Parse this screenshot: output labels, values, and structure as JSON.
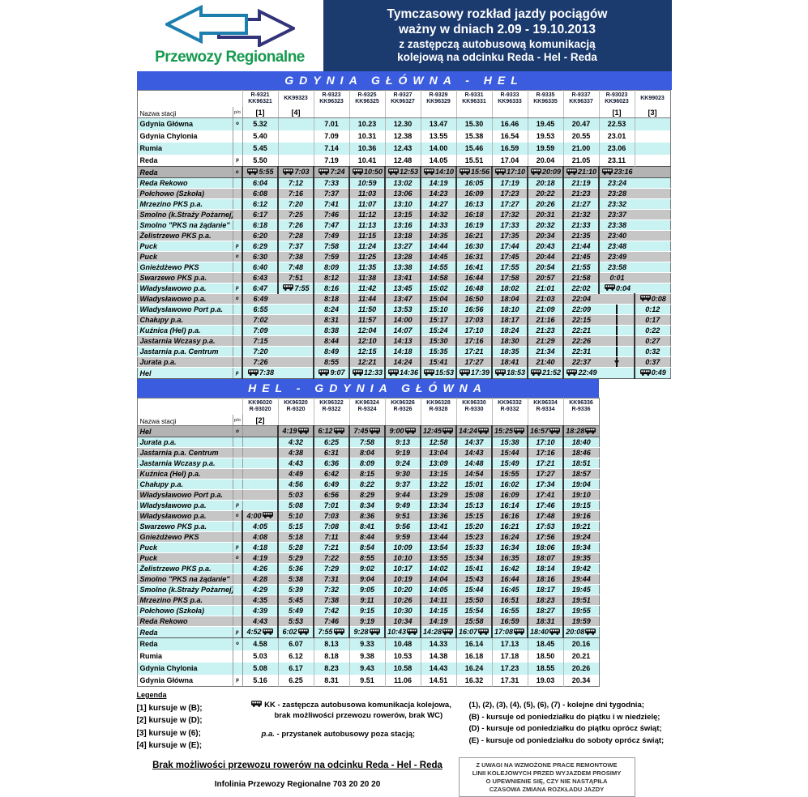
{
  "header": {
    "logo_text": "Przewozy Regionalne",
    "title_lines": [
      "Tymczasowy rozkład jazdy pociągów",
      "ważny w dniach 2.09 - 19.10.2013",
      "z zastępczą autobusową komunikacją",
      "kolejową na odcinku Reda - Hel - Reda"
    ]
  },
  "colors": {
    "banner_navy": "#1b3a6e",
    "route_blue": "#3b5cdf",
    "row_cyan": "#c9f2f2",
    "row_gray": "#c6c6c6",
    "transfer_gray": "#b3b3b3",
    "logo_green": "#159a4e",
    "arrow_teal": "#1d7fae",
    "arrow_navy": "#33337a"
  },
  "table1": {
    "title": "GDYNIA GŁÓWNA - HEL",
    "station_header": "Nazwa stacji",
    "po_header": "p/o",
    "columns": [
      {
        "l1": "R-9321",
        "l2": "KK96321",
        "note": "[1]"
      },
      {
        "l1": "KK99323",
        "l2": "",
        "note": "[4]"
      },
      {
        "l1": "R-9323",
        "l2": "KK96323",
        "note": ""
      },
      {
        "l1": "R-9325",
        "l2": "KK96325",
        "note": ""
      },
      {
        "l1": "R-9327",
        "l2": "KK96327",
        "note": ""
      },
      {
        "l1": "R-9329",
        "l2": "KK96329",
        "note": ""
      },
      {
        "l1": "R-9331",
        "l2": "KK96331",
        "note": ""
      },
      {
        "l1": "R-9333",
        "l2": "KK96333",
        "note": ""
      },
      {
        "l1": "R-9335",
        "l2": "KK96335",
        "note": ""
      },
      {
        "l1": "R-9337",
        "l2": "KK96337",
        "note": ""
      },
      {
        "l1": "R-93023",
        "l2": "KK96023",
        "note": "[1]"
      },
      {
        "l1": "KK99023",
        "l2": "",
        "note": "[3]"
      }
    ],
    "rows": [
      {
        "n": "Gdynia Główna",
        "po": "o",
        "s": "trc",
        "cells": [
          "5.32",
          "",
          "7.01",
          "10.23",
          "12.30",
          "13.47",
          "15.30",
          "16.46",
          "19.45",
          "20.47",
          "22.53",
          ""
        ]
      },
      {
        "n": "Gdynia Chylonia",
        "po": "",
        "s": "trw",
        "cells": [
          "5.40",
          "",
          "7.09",
          "10.31",
          "12.38",
          "13.55",
          "15.38",
          "16.54",
          "19.53",
          "20.55",
          "23.01",
          ""
        ]
      },
      {
        "n": "Rumia",
        "po": "",
        "s": "trc",
        "cells": [
          "5.45",
          "",
          "7.14",
          "10.36",
          "12.43",
          "14.00",
          "15.46",
          "16.59",
          "19.59",
          "21.00",
          "23.06",
          ""
        ]
      },
      {
        "n": "Reda",
        "po": "p",
        "s": "trw",
        "cells": [
          "5.50",
          "",
          "7.19",
          "10.41",
          "12.48",
          "14.05",
          "15.51",
          "17.04",
          "20.04",
          "21.05",
          "23.11",
          ""
        ]
      },
      {
        "n": "Reda",
        "po": "o",
        "s": "xg",
        "cells": [
          "~5:55",
          "~7:03",
          "~7:24",
          "~10:50",
          "~12:53",
          "~14:10",
          "~15:56",
          "~17:10",
          "~20:09",
          "~21:10",
          "~23:16",
          ""
        ]
      },
      {
        "n": "Reda Rekowo",
        "po": "",
        "s": "bc",
        "cells": [
          "6:04",
          "7:12",
          "7:33",
          "10:59",
          "13:02",
          "14:19",
          "16:05",
          "17:19",
          "20:18",
          "21:19",
          "23:24",
          ""
        ]
      },
      {
        "n": "Połchowo (Szkoła)",
        "po": "",
        "s": "bg",
        "cells": [
          "6:08",
          "7:16",
          "7:37",
          "11:03",
          "13:06",
          "14:23",
          "16:09",
          "17:23",
          "20:22",
          "21:23",
          "23:28",
          ""
        ]
      },
      {
        "n": "Mrzezino PKS p.a.",
        "po": "",
        "s": "bc",
        "cells": [
          "6:12",
          "7:20",
          "7:41",
          "11:07",
          "13:10",
          "14:27",
          "16:13",
          "17:27",
          "20:26",
          "21:27",
          "23:32",
          ""
        ]
      },
      {
        "n": "Smolno (k.Straży Pożarnej)",
        "po": "",
        "s": "bg",
        "cells": [
          "6:17",
          "7:25",
          "7:46",
          "11:12",
          "13:15",
          "14:32",
          "16:18",
          "17:32",
          "20:31",
          "21:32",
          "23:37",
          ""
        ]
      },
      {
        "n": "Smolno \"PKS na żądanie\"",
        "po": "",
        "s": "bc",
        "cells": [
          "6:18",
          "7:26",
          "7:47",
          "11:13",
          "13:16",
          "14:33",
          "16:19",
          "17:33",
          "20:32",
          "21:33",
          "23:38",
          ""
        ]
      },
      {
        "n": "Żelistrzewo PKS p.a.",
        "po": "",
        "s": "bg",
        "cells": [
          "6:20",
          "7:28",
          "7:49",
          "11:15",
          "13:18",
          "14:35",
          "16:21",
          "17:35",
          "20:34",
          "21:35",
          "23:40",
          ""
        ]
      },
      {
        "n": "Puck",
        "po": "p",
        "s": "bc",
        "cells": [
          "6:29",
          "7:37",
          "7:58",
          "11:24",
          "13:27",
          "14:44",
          "16:30",
          "17:44",
          "20:43",
          "21:44",
          "23:48",
          ""
        ]
      },
      {
        "n": "Puck",
        "po": "o",
        "s": "bg",
        "cells": [
          "6:30",
          "7:38",
          "7:59",
          "11:25",
          "13:28",
          "14:45",
          "16:31",
          "17:45",
          "20:44",
          "21:45",
          "23:49",
          ""
        ]
      },
      {
        "n": "Gnieżdżewo PKS",
        "po": "",
        "s": "bc",
        "cells": [
          "6:40",
          "7:48",
          "8:09",
          "11:35",
          "13:38",
          "14:55",
          "16:41",
          "17:55",
          "20:54",
          "21:55",
          "23:58",
          ""
        ]
      },
      {
        "n": "Swarzewo PKS p.a.",
        "po": "",
        "s": "bg",
        "cells": [
          "6:43",
          "7:51",
          "8:12",
          "11:38",
          "13:41",
          "14:58",
          "16:44",
          "17:58",
          "20:57",
          "21:58",
          "0:01",
          ""
        ]
      },
      {
        "n": "Władysławowo p.a.",
        "po": "p",
        "s": "bc",
        "cells": [
          "6:47",
          "~7:55",
          "8:16",
          "11:42",
          "13:45",
          "15:02",
          "16:48",
          "18:02",
          "21:01",
          "22:02",
          "~0:04",
          ""
        ]
      },
      {
        "n": "Władysławowo p.a.",
        "po": "o",
        "s": "bg",
        "cells": [
          "6:49",
          "",
          "8:18",
          "11:44",
          "13:47",
          "15:04",
          "16:50",
          "18:04",
          "21:03",
          "22:04",
          "",
          "~0:08"
        ]
      },
      {
        "n": "Władysławowo Port p.a.",
        "po": "",
        "s": "bc",
        "cells": [
          "6:55",
          "",
          "8:24",
          "11:50",
          "13:53",
          "15:10",
          "16:56",
          "18:10",
          "21:09",
          "22:09",
          "|",
          "0:12"
        ]
      },
      {
        "n": "Chałupy p.a.",
        "po": "",
        "s": "bg",
        "cells": [
          "7:02",
          "",
          "8:31",
          "11:57",
          "14:00",
          "15:17",
          "17:03",
          "18:17",
          "21:16",
          "22:15",
          "|",
          "0:17"
        ]
      },
      {
        "n": "Kuźnica (Hel) p.a.",
        "po": "",
        "s": "bc",
        "cells": [
          "7:09",
          "",
          "8:38",
          "12:04",
          "14:07",
          "15:24",
          "17:10",
          "18:24",
          "21:23",
          "22:21",
          "|",
          "0:22"
        ]
      },
      {
        "n": "Jastarnia Wczasy p.a.",
        "po": "",
        "s": "bg",
        "cells": [
          "7:15",
          "",
          "8:44",
          "12:10",
          "14:13",
          "15:30",
          "17:16",
          "18:30",
          "21:29",
          "22:26",
          "|",
          "0:27"
        ]
      },
      {
        "n": "Jastarnia p.a. Centrum",
        "po": "",
        "s": "bc",
        "cells": [
          "7:20",
          "",
          "8:49",
          "12:15",
          "14:18",
          "15:35",
          "17:21",
          "18:35",
          "21:34",
          "22:31",
          "|",
          "0:32"
        ]
      },
      {
        "n": "Jurata p.a.",
        "po": "",
        "s": "bg",
        "cells": [
          "7:26",
          "",
          "8:55",
          "12:21",
          "14:24",
          "15:41",
          "17:27",
          "18:41",
          "21:40",
          "22:37",
          "|v",
          "0:37"
        ]
      },
      {
        "n": "Hel",
        "po": "p",
        "s": "xc",
        "cells": [
          "~7:38",
          "",
          "~9:07",
          "~12:33",
          "~14:36",
          "~15:53",
          "~17:39",
          "~18:53",
          "~21:52",
          "~22:49",
          "",
          "~0:49"
        ]
      }
    ]
  },
  "table2": {
    "title": "HEL - GDYNIA GŁÓWNA",
    "station_header": "Nazwa stacji",
    "po_header": "p/o",
    "columns": [
      {
        "l1": "KK96020",
        "l2": "R-93020",
        "note": "[2]"
      },
      {
        "l1": "KK96320",
        "l2": "R-9320",
        "note": ""
      },
      {
        "l1": "KK96322",
        "l2": "R-9322",
        "note": ""
      },
      {
        "l1": "KK96324",
        "l2": "R-9324",
        "note": ""
      },
      {
        "l1": "KK96326",
        "l2": "R-9326",
        "note": ""
      },
      {
        "l1": "KK96328",
        "l2": "R-9328",
        "note": ""
      },
      {
        "l1": "KK96330",
        "l2": "R-9330",
        "note": ""
      },
      {
        "l1": "KK96332",
        "l2": "R-9332",
        "note": ""
      },
      {
        "l1": "KK96334",
        "l2": "R-9334",
        "note": ""
      },
      {
        "l1": "KK96336",
        "l2": "R-9336",
        "note": ""
      }
    ],
    "rows": [
      {
        "n": "Hel",
        "po": "o",
        "s": "xg",
        "cells": [
          "",
          "4:19~",
          "6:12~",
          "7:45~",
          "9:00~",
          "12:45~",
          "14:24~",
          "15:25~",
          "16:57~",
          "18:28~"
        ]
      },
      {
        "n": "Jurata p.a.",
        "po": "",
        "s": "bc",
        "cells": [
          "",
          "4:32",
          "6:25",
          "7:58",
          "9:13",
          "12:58",
          "14:37",
          "15:38",
          "17:10",
          "18:40"
        ]
      },
      {
        "n": "Jastarnia p.a. Centrum",
        "po": "",
        "s": "bg",
        "cells": [
          "",
          "4:38",
          "6:31",
          "8:04",
          "9:19",
          "13:04",
          "14:43",
          "15:44",
          "17:16",
          "18:46"
        ]
      },
      {
        "n": "Jastarnia Wczasy p.a.",
        "po": "",
        "s": "bc",
        "cells": [
          "",
          "4:43",
          "6:36",
          "8:09",
          "9:24",
          "13:09",
          "14:48",
          "15:49",
          "17:21",
          "18:51"
        ]
      },
      {
        "n": "Kuźnica (Hel) p.a.",
        "po": "",
        "s": "bg",
        "cells": [
          "",
          "4:49",
          "6:42",
          "8:15",
          "9:30",
          "13:15",
          "14:54",
          "15:55",
          "17:27",
          "18:57"
        ]
      },
      {
        "n": "Chałupy p.a.",
        "po": "",
        "s": "bc",
        "cells": [
          "",
          "4:56",
          "6:49",
          "8:22",
          "9:37",
          "13:22",
          "15:01",
          "16:02",
          "17:34",
          "19:04"
        ]
      },
      {
        "n": "Władysławowo Port p.a.",
        "po": "",
        "s": "bg",
        "cells": [
          "",
          "5:03",
          "6:56",
          "8:29",
          "9:44",
          "13:29",
          "15:08",
          "16:09",
          "17:41",
          "19:10"
        ]
      },
      {
        "n": "Władysławowo p.a.",
        "po": "p",
        "s": "bc",
        "cells": [
          "",
          "5:08",
          "7:01",
          "8:34",
          "9:49",
          "13:34",
          "15:13",
          "16:14",
          "17:46",
          "19:15"
        ]
      },
      {
        "n": "Władysławowo p.a.",
        "po": "o",
        "s": "bg",
        "cells": [
          "4:00~",
          "5:10",
          "7:03",
          "8:36",
          "9:51",
          "13:36",
          "15:15",
          "16:16",
          "17:48",
          "19:16"
        ]
      },
      {
        "n": "Swarzewo PKS p.a.",
        "po": "",
        "s": "bc",
        "cells": [
          "4:05",
          "5:15",
          "7:08",
          "8:41",
          "9:56",
          "13:41",
          "15:20",
          "16:21",
          "17:53",
          "19:21"
        ]
      },
      {
        "n": "Gnieżdżewo PKS",
        "po": "",
        "s": "bg",
        "cells": [
          "4:08",
          "5:18",
          "7:11",
          "8:44",
          "9:59",
          "13:44",
          "15:23",
          "16:24",
          "17:56",
          "19:24"
        ]
      },
      {
        "n": "Puck",
        "po": "p",
        "s": "bc",
        "cells": [
          "4:18",
          "5:28",
          "7:21",
          "8:54",
          "10:09",
          "13:54",
          "15:33",
          "16:34",
          "18:06",
          "19:34"
        ]
      },
      {
        "n": "Puck",
        "po": "o",
        "s": "bg",
        "cells": [
          "4:19",
          "5:29",
          "7:22",
          "8:55",
          "10:10",
          "13:55",
          "15:34",
          "16:35",
          "18:07",
          "19:35"
        ]
      },
      {
        "n": "Żelistrzewo PKS p.a.",
        "po": "",
        "s": "bc",
        "cells": [
          "4:26",
          "5:36",
          "7:29",
          "9:02",
          "10:17",
          "14:02",
          "15:41",
          "16:42",
          "18:14",
          "19:42"
        ]
      },
      {
        "n": "Smolno \"PKS na żądanie\"",
        "po": "",
        "s": "bg",
        "cells": [
          "4:28",
          "5:38",
          "7:31",
          "9:04",
          "10:19",
          "14:04",
          "15:43",
          "16:44",
          "18:16",
          "19:44"
        ]
      },
      {
        "n": "Smolno (k.Straży Pożarnej)",
        "po": "",
        "s": "bc",
        "cells": [
          "4:29",
          "5:39",
          "7:32",
          "9:05",
          "10:20",
          "14:05",
          "15:44",
          "16:45",
          "18:17",
          "19:45"
        ]
      },
      {
        "n": "Mrzezino PKS p.a.",
        "po": "",
        "s": "bg",
        "cells": [
          "4:35",
          "5:45",
          "7:38",
          "9:11",
          "10:26",
          "14:11",
          "15:50",
          "16:51",
          "18:23",
          "19:51"
        ]
      },
      {
        "n": "Połchowo (Szkoła)",
        "po": "",
        "s": "bc",
        "cells": [
          "4:39",
          "5:49",
          "7:42",
          "9:15",
          "10:30",
          "14:15",
          "15:54",
          "16:55",
          "18:27",
          "19:55"
        ]
      },
      {
        "n": "Reda Rekowo",
        "po": "",
        "s": "bg",
        "cells": [
          "4:43",
          "5:53",
          "7:46",
          "9:19",
          "10:34",
          "14:19",
          "15:58",
          "16:59",
          "18:31",
          "19:59"
        ]
      },
      {
        "n": "Reda",
        "po": "p",
        "s": "xc",
        "cells": [
          "4:52~",
          "6:02~",
          "7:55~",
          "9:28~",
          "10:43~",
          "14:28~",
          "16:07~",
          "17:08~",
          "18:40~",
          "20:08~"
        ]
      },
      {
        "n": "Reda",
        "po": "o",
        "s": "trc",
        "cells": [
          "4.58",
          "6.07",
          "8.13",
          "9.33",
          "10.48",
          "14.33",
          "16.14",
          "17.13",
          "18.45",
          "20.16"
        ]
      },
      {
        "n": "Rumia",
        "po": "",
        "s": "trw",
        "cells": [
          "5.03",
          "6.12",
          "8.18",
          "9.38",
          "10.53",
          "14.38",
          "16.18",
          "17.18",
          "18.50",
          "20.21"
        ]
      },
      {
        "n": "Gdynia Chylonia",
        "po": "",
        "s": "trc",
        "cells": [
          "5.08",
          "6.17",
          "8.23",
          "9.43",
          "10.58",
          "14.43",
          "16.24",
          "17.23",
          "18.55",
          "20.26"
        ]
      },
      {
        "n": "Gdynia Główna",
        "po": "p",
        "s": "trw",
        "cells": [
          "5.16",
          "6.25",
          "8.31",
          "9.51",
          "11.06",
          "14.51",
          "16.32",
          "17.31",
          "19.03",
          "20.34"
        ]
      }
    ]
  },
  "legend": {
    "heading": "Legenda",
    "notes": [
      "[1] kursuje w (B);",
      "[2] kursuje w (D);",
      "[3] kursuje w (6);",
      "[4] kursuje w (E);"
    ],
    "kk_line1": "KK - zastępcza autobusowa komunikacja kolejowa,",
    "kk_line2": "brak możliwości przewozu rowerów, brak WC)",
    "pa_abbr": "p.a.",
    "pa_text": " - przystanek autobusowy poza stacją;",
    "days": [
      "(1), (2), (3), (4), (5), (6), (7) - kolejne dni tygodnia;",
      "(B) - kursuje od poniedziałku do piątku i w niedzielę;",
      "(D) - kursuje od poniedziałku do piątku oprócz świąt;",
      "(E) - kursuje od poniedziałku do soboty oprócz świąt;"
    ]
  },
  "footer": {
    "no_bikes": "Brak możliwości przewozu rowerów na odcinku Reda - Hel - Reda",
    "infoline": "Infolinia Przewozy Regionalne 703 20 20 20",
    "warning_lines": [
      "Z UWAGI NA WZMOŻONE PRACE REMONTOWE",
      "LINII KOLEJOWYCH PRZED WYJAZDEM PROSIMY",
      "O UPEWNIENIE SIĘ, CZY NIE NASTĄPIŁA",
      "CZASOWA ZMIANA ROZKŁADU JAZDY"
    ]
  }
}
